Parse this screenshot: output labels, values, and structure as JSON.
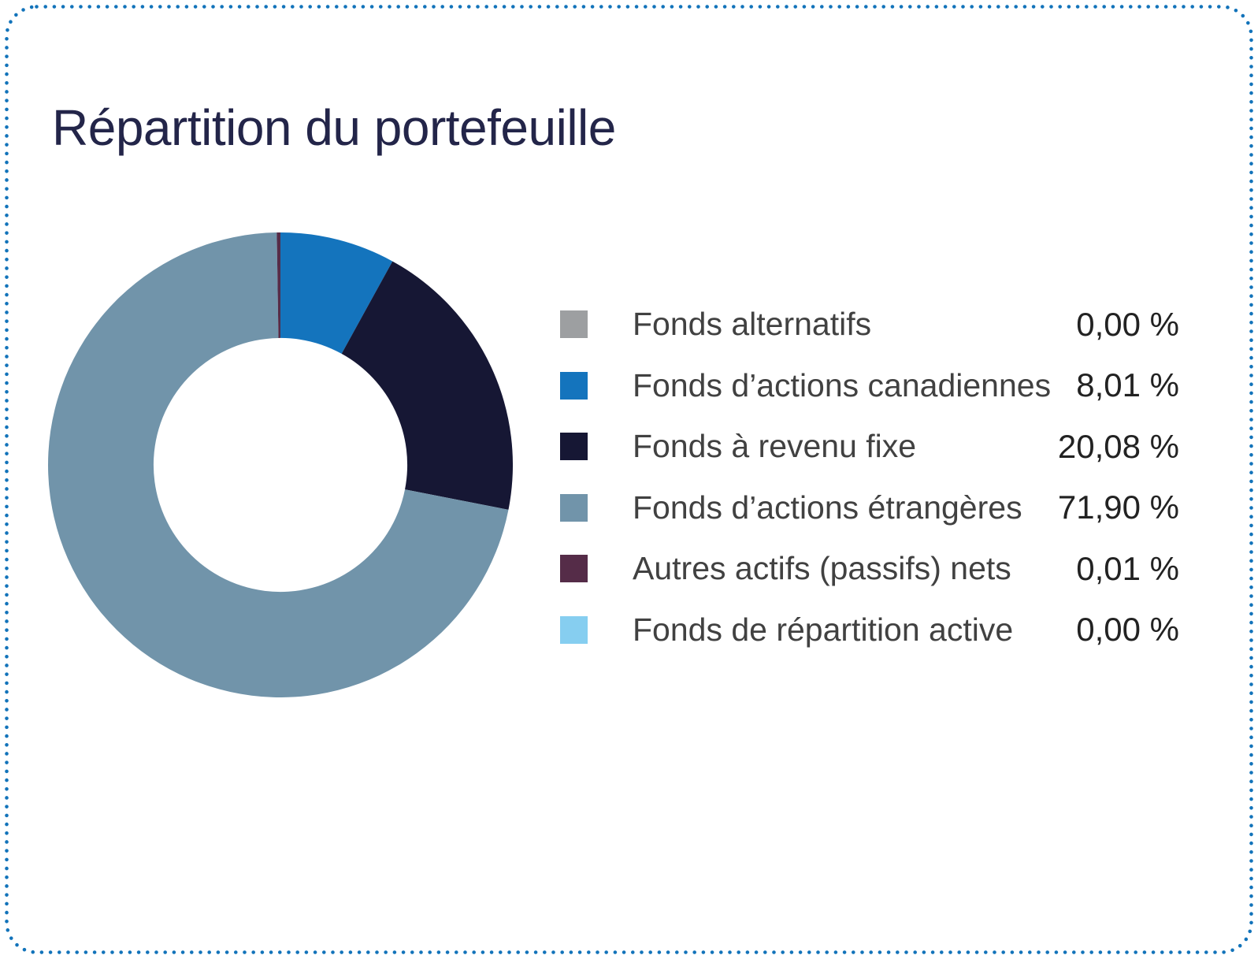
{
  "page": {
    "title": "Répartition du portefeuille"
  },
  "theme": {
    "background": "#ffffff",
    "border_dot_color": "#1273ba",
    "title_color": "#232549",
    "legend_label_color": "#414141",
    "legend_value_color": "#222222"
  },
  "chart_data": {
    "type": "pie",
    "subtype": "donut",
    "title": "Répartition du portefeuille",
    "inner_radius_ratio": 0.546,
    "start_angle_deg": 0,
    "direction": "clockwise",
    "legend_position": "right",
    "series": [
      {
        "label": "Fonds alternatifs",
        "value": 0.0,
        "display": "0,00 %",
        "color": "#9d9fa1"
      },
      {
        "label": "Fonds d’actions canadiennes",
        "value": 8.01,
        "display": "8,01 %",
        "color": "#1474bd"
      },
      {
        "label": "Fonds à revenu fixe",
        "value": 20.08,
        "display": "20,08 %",
        "color": "#161734"
      },
      {
        "label": "Fonds d’actions étrangères",
        "value": 71.9,
        "display": "71,90 %",
        "color": "#7194aa"
      },
      {
        "label": "Autres actifs (passifs) nets",
        "value": 0.01,
        "display": "0,01 %",
        "color": "#552c48"
      },
      {
        "label": "Fonds de répartition active",
        "value": 0.0,
        "display": "0,00 %",
        "color": "#86cef0"
      }
    ]
  }
}
